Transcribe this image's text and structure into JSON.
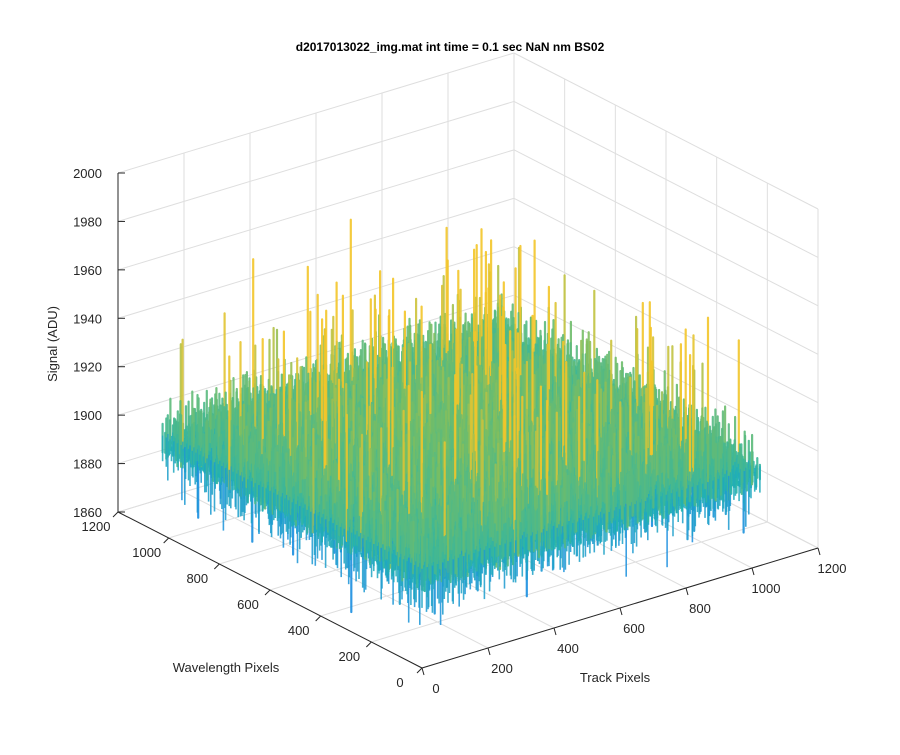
{
  "chart_data": {
    "type": "surface",
    "title": "d2017013022_img.mat int time = 0.1 sec  NaN nm BS02",
    "xlabel": "Track Pixels",
    "ylabel": "Wavelength Pixels",
    "zlabel": "Signal (ADU)",
    "xlim": [
      0,
      1200
    ],
    "ylim": [
      0,
      1200
    ],
    "zlim": [
      1860,
      2000
    ],
    "x_ticks": [
      0,
      200,
      400,
      600,
      800,
      1000,
      1200
    ],
    "y_ticks": [
      0,
      200,
      400,
      600,
      800,
      1000,
      1200
    ],
    "z_ticks": [
      1860,
      1880,
      1900,
      1920,
      1940,
      1960,
      1980,
      2000
    ],
    "surface_extent": {
      "x": [
        0,
        1024
      ],
      "y": [
        0,
        1024
      ]
    },
    "typical_level": 1905,
    "peak_values": [
      1984,
      1972,
      1968
    ],
    "min_values": [
      1862,
      1866
    ],
    "grid": true,
    "colormap": "parula",
    "colors": {
      "low": "#1a8fe0",
      "mid": "#22b4b0",
      "high": "#f3c62a",
      "axis": "#262626",
      "grid": "#dedede"
    }
  }
}
